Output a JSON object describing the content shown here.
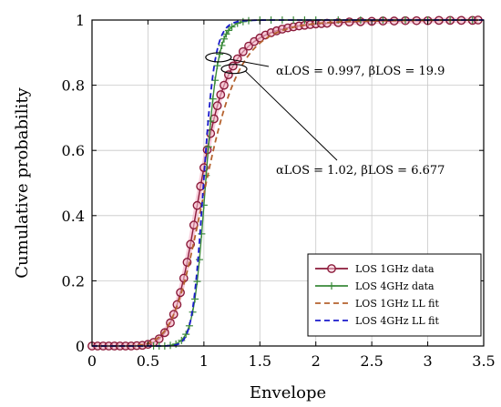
{
  "chart_data": {
    "type": "line",
    "xlabel": "Envelope",
    "ylabel": "Cumulative probability",
    "xlim": [
      0,
      3.5
    ],
    "ylim": [
      0,
      1
    ],
    "xticks": [
      "0",
      "0.5",
      "1",
      "1.5",
      "2",
      "2.5",
      "3",
      "3.5"
    ],
    "yticks": [
      "0",
      "0.2",
      "0.4",
      "0.6",
      "0.8",
      "1"
    ],
    "grid": true,
    "legend_position": "bottom-right",
    "series": [
      {
        "name": "LOS 1GHz data",
        "color": "#8b1a3a",
        "marker": "circle",
        "style": "solid",
        "points": [
          [
            0,
            0
          ],
          [
            0.05,
            0
          ],
          [
            0.1,
            0
          ],
          [
            0.15,
            0
          ],
          [
            0.2,
            0
          ],
          [
            0.25,
            0
          ],
          [
            0.3,
            0
          ],
          [
            0.35,
            0
          ],
          [
            0.4,
            0.001
          ],
          [
            0.45,
            0.002
          ],
          [
            0.5,
            0.005
          ],
          [
            0.55,
            0.011
          ],
          [
            0.6,
            0.022
          ],
          [
            0.65,
            0.041
          ],
          [
            0.7,
            0.071
          ],
          [
            0.73,
            0.097
          ],
          [
            0.76,
            0.127
          ],
          [
            0.79,
            0.164
          ],
          [
            0.82,
            0.208
          ],
          [
            0.85,
            0.257
          ],
          [
            0.88,
            0.312
          ],
          [
            0.91,
            0.371
          ],
          [
            0.94,
            0.431
          ],
          [
            0.97,
            0.49
          ],
          [
            1.0,
            0.547
          ],
          [
            1.03,
            0.602
          ],
          [
            1.06,
            0.652
          ],
          [
            1.09,
            0.697
          ],
          [
            1.12,
            0.737
          ],
          [
            1.15,
            0.771
          ],
          [
            1.18,
            0.8
          ],
          [
            1.22,
            0.832
          ],
          [
            1.26,
            0.859
          ],
          [
            1.3,
            0.881
          ],
          [
            1.35,
            0.903
          ],
          [
            1.4,
            0.92
          ],
          [
            1.45,
            0.934
          ],
          [
            1.5,
            0.945
          ],
          [
            1.55,
            0.954
          ],
          [
            1.6,
            0.961
          ],
          [
            1.65,
            0.967
          ],
          [
            1.7,
            0.972
          ],
          [
            1.75,
            0.976
          ],
          [
            1.8,
            0.979
          ],
          [
            1.85,
            0.982
          ],
          [
            1.9,
            0.984
          ],
          [
            1.95,
            0.986
          ],
          [
            2.0,
            0.988
          ],
          [
            2.05,
            0.989
          ],
          [
            2.1,
            0.99
          ],
          [
            2.2,
            0.992
          ],
          [
            2.3,
            0.994
          ],
          [
            2.4,
            0.995
          ],
          [
            2.5,
            0.996
          ],
          [
            2.6,
            0.997
          ],
          [
            2.7,
            0.997
          ],
          [
            2.8,
            0.998
          ],
          [
            2.9,
            0.998
          ],
          [
            3.0,
            0.998
          ],
          [
            3.1,
            0.999
          ],
          [
            3.2,
            0.999
          ],
          [
            3.3,
            0.999
          ],
          [
            3.4,
            0.999
          ],
          [
            3.45,
            1.0
          ]
        ]
      },
      {
        "name": "LOS 4GHz data",
        "color": "#3a8a3a",
        "marker": "plus",
        "style": "solid",
        "points": [
          [
            0.55,
            0
          ],
          [
            0.6,
            0
          ],
          [
            0.65,
            0
          ],
          [
            0.7,
            0.002
          ],
          [
            0.75,
            0.006
          ],
          [
            0.8,
            0.017
          ],
          [
            0.84,
            0.036
          ],
          [
            0.87,
            0.062
          ],
          [
            0.9,
            0.104
          ],
          [
            0.92,
            0.144
          ],
          [
            0.94,
            0.198
          ],
          [
            0.96,
            0.265
          ],
          [
            0.98,
            0.344
          ],
          [
            1.0,
            0.432
          ],
          [
            1.02,
            0.523
          ],
          [
            1.04,
            0.611
          ],
          [
            1.06,
            0.69
          ],
          [
            1.08,
            0.758
          ],
          [
            1.1,
            0.815
          ],
          [
            1.12,
            0.86
          ],
          [
            1.14,
            0.895
          ],
          [
            1.16,
            0.922
          ],
          [
            1.18,
            0.942
          ],
          [
            1.2,
            0.957
          ],
          [
            1.22,
            0.968
          ],
          [
            1.25,
            0.979
          ],
          [
            1.3,
            0.99
          ],
          [
            1.35,
            0.995
          ],
          [
            1.4,
            0.998
          ],
          [
            1.5,
            1.0
          ],
          [
            1.6,
            1.0
          ],
          [
            1.7,
            1.0
          ],
          [
            1.8,
            1.0
          ],
          [
            1.9,
            1.0
          ],
          [
            2.0,
            1.0
          ],
          [
            2.2,
            1.0
          ],
          [
            2.4,
            1.0
          ],
          [
            2.6,
            1.0
          ],
          [
            2.8,
            1.0
          ],
          [
            3.0,
            1.0
          ],
          [
            3.2,
            1.0
          ],
          [
            3.4,
            1.0
          ]
        ]
      },
      {
        "name": "LOS 1GHz LL fit",
        "color": "#b5622e",
        "marker": "none",
        "style": "dashed",
        "fit": {
          "alpha": 1.02,
          "beta": 6.677
        },
        "x_range": [
          0,
          3.5
        ]
      },
      {
        "name": "LOS 4GHz LL fit",
        "color": "#1a1acc",
        "marker": "none",
        "style": "dashed",
        "fit": {
          "alpha": 0.997,
          "beta": 19.9
        },
        "x_range": [
          0,
          3.5
        ]
      }
    ],
    "annotations": [
      {
        "text": "αLOS = 0.997, βLOS = 19.9",
        "target_x": 1.13,
        "target_y": 0.88
      },
      {
        "text": "αLOS = 1.02, βLOS = 6.677",
        "target_x": 1.27,
        "target_y": 0.85
      }
    ]
  }
}
